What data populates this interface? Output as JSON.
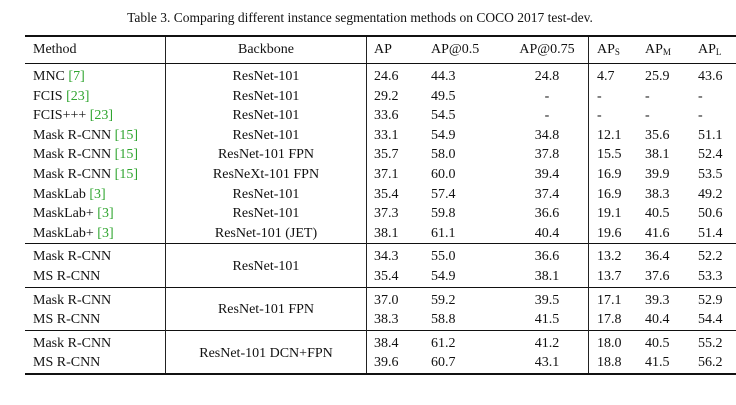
{
  "caption": "Table 3. Comparing different instance segmentation methods on COCO 2017 test-dev.",
  "headers": {
    "method": "Method",
    "backbone": "Backbone",
    "ap": "AP",
    "ap50": "AP@0.5",
    "ap75": "AP@0.75",
    "aps_base": "AP",
    "aps_sub": "S",
    "apm_base": "AP",
    "apm_sub": "M",
    "apl_base": "AP",
    "apl_sub": "L"
  },
  "colors": {
    "citation": "#2fa52f"
  },
  "group1": [
    {
      "method": "MNC ",
      "cite": "[7]",
      "backbone": "ResNet-101",
      "ap": "24.6",
      "ap50": "44.3",
      "ap75": "24.8",
      "aps": "4.7",
      "apm": "25.9",
      "apl": "43.6"
    },
    {
      "method": "FCIS ",
      "cite": "[23]",
      "backbone": "ResNet-101",
      "ap": "29.2",
      "ap50": "49.5",
      "ap75": "-",
      "aps": "-",
      "apm": "-",
      "apl": "-"
    },
    {
      "method": "FCIS+++ ",
      "cite": "[23]",
      "backbone": "ResNet-101",
      "ap": "33.6",
      "ap50": "54.5",
      "ap75": "-",
      "aps": "-",
      "apm": "-",
      "apl": "-"
    },
    {
      "method": "Mask R-CNN ",
      "cite": "[15]",
      "backbone": "ResNet-101",
      "ap": "33.1",
      "ap50": "54.9",
      "ap75": "34.8",
      "aps": "12.1",
      "apm": "35.6",
      "apl": "51.1"
    },
    {
      "method": "Mask R-CNN ",
      "cite": "[15]",
      "backbone": "ResNet-101 FPN",
      "ap": "35.7",
      "ap50": "58.0",
      "ap75": "37.8",
      "aps": "15.5",
      "apm": "38.1",
      "apl": "52.4"
    },
    {
      "method": "Mask R-CNN ",
      "cite": "[15]",
      "backbone": "ResNeXt-101 FPN",
      "ap": "37.1",
      "ap50": "60.0",
      "ap75": "39.4",
      "aps": "16.9",
      "apm": "39.9",
      "apl": "53.5"
    },
    {
      "method": "MaskLab ",
      "cite": "[3]",
      "backbone": "ResNet-101",
      "ap": "35.4",
      "ap50": "57.4",
      "ap75": "37.4",
      "aps": "16.9",
      "apm": "38.3",
      "apl": "49.2"
    },
    {
      "method": "MaskLab+ ",
      "cite": "[3]",
      "backbone": "ResNet-101",
      "ap": "37.3",
      "ap50": "59.8",
      "ap75": "36.6",
      "aps": "19.1",
      "apm": "40.5",
      "apl": "50.6"
    },
    {
      "method": "MaskLab+ ",
      "cite": "[3]",
      "backbone": "ResNet-101 (JET)",
      "ap": "38.1",
      "ap50": "61.1",
      "ap75": "40.4",
      "aps": "19.6",
      "apm": "41.6",
      "apl": "51.4"
    }
  ],
  "group2": {
    "backbone": "ResNet-101",
    "rows": [
      {
        "method": "Mask R-CNN",
        "ap": "34.3",
        "ap50": "55.0",
        "ap75": "36.6",
        "aps": "13.2",
        "apm": "36.4",
        "apl": "52.2"
      },
      {
        "method": "MS R-CNN",
        "ap": "35.4",
        "ap50": "54.9",
        "ap75": "38.1",
        "aps": "13.7",
        "apm": "37.6",
        "apl": "53.3"
      }
    ]
  },
  "group3": {
    "backbone": "ResNet-101 FPN",
    "rows": [
      {
        "method": "Mask R-CNN",
        "ap": "37.0",
        "ap50": "59.2",
        "ap75": "39.5",
        "aps": "17.1",
        "apm": "39.3",
        "apl": "52.9"
      },
      {
        "method": "MS R-CNN",
        "ap": "38.3",
        "ap50": "58.8",
        "ap75": "41.5",
        "aps": "17.8",
        "apm": "40.4",
        "apl": "54.4"
      }
    ]
  },
  "group4": {
    "backbone": "ResNet-101 DCN+FPN",
    "rows": [
      {
        "method": "Mask R-CNN",
        "ap": "38.4",
        "ap50": "61.2",
        "ap75": "41.2",
        "aps": "18.0",
        "apm": "40.5",
        "apl": "55.2"
      },
      {
        "method": "MS R-CNN",
        "ap": "39.6",
        "ap50": "60.7",
        "ap75": "43.1",
        "aps": "18.8",
        "apm": "41.5",
        "apl": "56.2"
      }
    ]
  }
}
